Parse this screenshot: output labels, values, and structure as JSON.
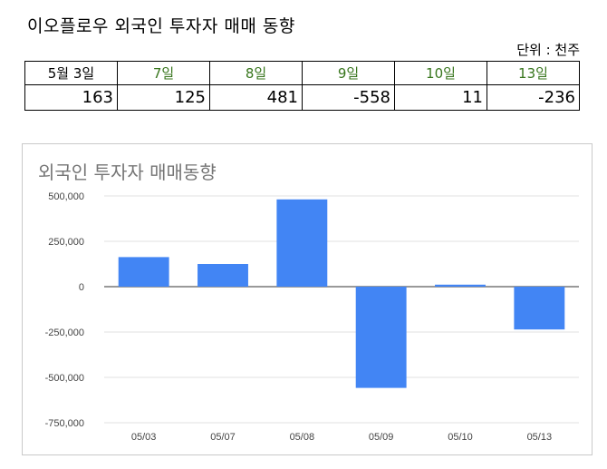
{
  "title": "이오플로우 외국인 투자자 매매 동향",
  "unit_label": "단위 : 천주",
  "table": {
    "headers": [
      {
        "label": "5월 3일",
        "green": false
      },
      {
        "label": "7일",
        "green": true
      },
      {
        "label": "8일",
        "green": true
      },
      {
        "label": "9일",
        "green": true
      },
      {
        "label": "10일",
        "green": true
      },
      {
        "label": "13일",
        "green": true
      }
    ],
    "values": [
      "163",
      "125",
      "481",
      "-558",
      "11",
      "-236"
    ]
  },
  "colors": {
    "bar": "#4285f4",
    "header_green": "#38761d",
    "grid": "#e0e0e0",
    "title_gray": "#757575"
  },
  "chart_data": {
    "type": "bar",
    "title": "외국인 투자자 매매동향",
    "categories": [
      "05/03",
      "05/07",
      "05/08",
      "05/09",
      "05/10",
      "05/13"
    ],
    "values": [
      163000,
      125000,
      481000,
      -558000,
      11000,
      -236000
    ],
    "ylim": [
      -750000,
      500000
    ],
    "yticks": [
      500000,
      250000,
      0,
      -250000,
      -500000,
      -750000
    ],
    "ytick_labels": [
      "500,000",
      "250,000",
      "0",
      "-250,000",
      "-500,000",
      "-750,000"
    ],
    "xlabel": "",
    "ylabel": "",
    "grid": true,
    "legend": "none"
  }
}
